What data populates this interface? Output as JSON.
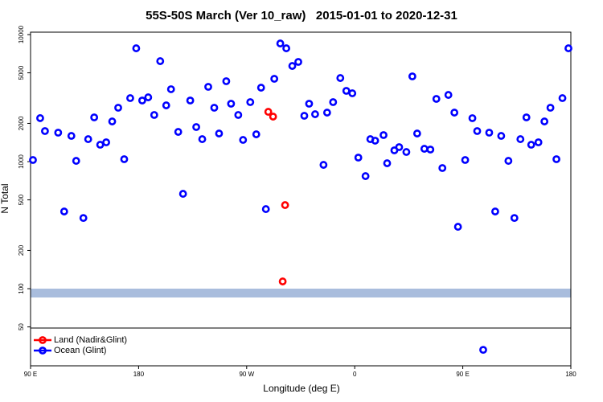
{
  "chart_data": {
    "type": "scatter",
    "title": "55S-50S March (Ver 10_raw)   2015-01-01 to 2020-12-31",
    "x_label": "Longitude (deg E)",
    "y_label": "N Total",
    "log_y": true,
    "xlim": [
      90,
      540
    ],
    "xticks": [
      {
        "value": 90,
        "label": "90 E"
      },
      180,
      {
        "value": 270,
        "label": "90 W"
      },
      {
        "value": 360,
        "label": "0"
      },
      {
        "value": 450,
        "label": "90 E"
      },
      {
        "value": 540,
        "label": "180"
      }
    ],
    "ylim": [
      24.7,
      10450
    ],
    "yticks": [
      50,
      100,
      200,
      500,
      1000,
      2000,
      5000,
      10000
    ],
    "legend": "bottom-left",
    "series": [
      {
        "name": "Land (Nadir&Glint)",
        "color": "#ff0000",
        "x": [
          288,
          292,
          302,
          300
        ],
        "values": [
          2467,
          2261,
          455,
          114
        ]
      },
      {
        "name": "Ocean (Glint)",
        "color": "#0000ff",
        "x": [
          92,
          98,
          102,
          113,
          118,
          124,
          128,
          134,
          138,
          143,
          148,
          153,
          158,
          163,
          168,
          173,
          178,
          183,
          188,
          193,
          198,
          203,
          207,
          213,
          217,
          223,
          228,
          233,
          238,
          243,
          247,
          253,
          257,
          263,
          267,
          273,
          278,
          282,
          286,
          293,
          298,
          303,
          308,
          313,
          318,
          322,
          327,
          334,
          337,
          342,
          348,
          353,
          358,
          363,
          369,
          373,
          377,
          384,
          387,
          393,
          397,
          403,
          408,
          412,
          418,
          423,
          428,
          433,
          438,
          443,
          446,
          452,
          458,
          462,
          467,
          472,
          477,
          482,
          488,
          493,
          498,
          503,
          507,
          513,
          518,
          523,
          528,
          533,
          538
        ],
        "values": [
          1030,
          2200,
          1740,
          1690,
          405,
          1594,
          1014,
          360,
          1503,
          2230,
          1358,
          1419,
          2072,
          2655,
          1045,
          3162,
          7800,
          3027,
          3208,
          2330,
          6180,
          2773,
          3715,
          1714,
          558,
          3027,
          1872,
          1503,
          3880,
          2655,
          1665,
          4295,
          2857,
          2330,
          1482,
          2940,
          1641,
          3820,
          423,
          4487,
          8511,
          7800,
          5663,
          6095,
          2296,
          2857,
          2362,
          943,
          2432,
          2940,
          4550,
          3606,
          3451,
          1076,
          769,
          1503,
          1462,
          1618,
          971,
          1227,
          1300,
          1191,
          4688,
          1665,
          1262,
          1245,
          3118,
          890,
          3350,
          2432,
          307,
          1030,
          2198,
          1740,
          33,
          1690,
          405,
          1594,
          1014,
          360,
          1503,
          2230,
          1358,
          1419,
          2072,
          2655,
          1045,
          3162,
          7800
        ]
      }
    ]
  }
}
